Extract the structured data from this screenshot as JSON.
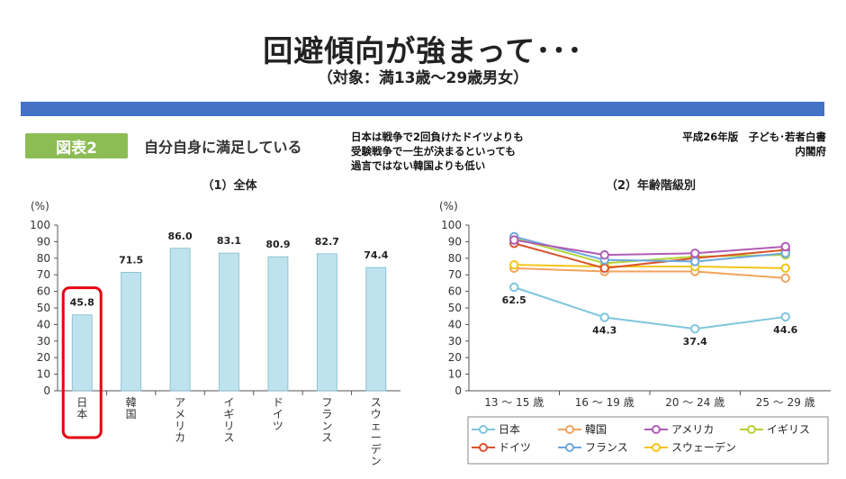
{
  "header": {
    "title": "回避傾向が強まって･･･",
    "subtitle": "（対象：満13歳～29歳男女）"
  },
  "figure": {
    "badge": "図表2",
    "caption": "自分自身に満足している",
    "note_lines": [
      "日本は戦争で2回負けたドイツよりも",
      "受験戦争で一生が決まるといっても",
      "過言ではない韓国よりも低い"
    ],
    "source_lines": [
      "平成26年版　子ども･若者白書",
      "内閣府"
    ]
  },
  "colors": {
    "bar_fill": "#bfe3ee",
    "bar_stroke": "#7fb9cc",
    "highlight": "#e60012",
    "band": "#4472c4",
    "badge": "#8cbd55"
  },
  "chart_data": [
    {
      "type": "bar",
      "subtitle": "（1）全体",
      "ylabel": "(%)",
      "ylim": [
        0,
        100
      ],
      "yticks": [
        0,
        10,
        20,
        30,
        40,
        50,
        60,
        70,
        80,
        90,
        100
      ],
      "categories": [
        "日本",
        "韓国",
        "アメリカ",
        "イギリス",
        "ドイツ",
        "フランス",
        "スウェーデン"
      ],
      "values": [
        45.8,
        71.5,
        86.0,
        83.1,
        80.9,
        82.7,
        74.4
      ],
      "value_labels": [
        "45.8",
        "71.5",
        "86.0",
        "83.1",
        "80.9",
        "82.7",
        "74.4"
      ],
      "highlighted_category": "日本",
      "grid": false
    },
    {
      "type": "line",
      "subtitle": "（2）年齢階級別",
      "ylabel": "(%)",
      "ylim": [
        0,
        100
      ],
      "yticks": [
        0,
        10,
        20,
        30,
        40,
        50,
        60,
        70,
        80,
        90,
        100
      ],
      "categories": [
        "13 ～ 15 歳",
        "16 ～ 19 歳",
        "20 ～ 24 歳",
        "25 ～ 29 歳"
      ],
      "legend_position": "bottom",
      "series": [
        {
          "name": "日本",
          "color": "#7ec5dc",
          "values": [
            62.5,
            44.3,
            37.4,
            44.6
          ],
          "labels": [
            "62.5",
            "44.3",
            "37.4",
            "44.6"
          ]
        },
        {
          "name": "韓国",
          "color": "#f0a35e",
          "values": [
            74,
            72,
            72,
            68
          ]
        },
        {
          "name": "アメリカ",
          "color": "#b05cb6",
          "values": [
            91,
            82,
            83,
            87
          ]
        },
        {
          "name": "イギリス",
          "color": "#b5d334",
          "values": [
            92,
            77,
            81,
            82
          ]
        },
        {
          "name": "ドイツ",
          "color": "#d9532c",
          "values": [
            89,
            74,
            80,
            85
          ]
        },
        {
          "name": "フランス",
          "color": "#6da8de",
          "values": [
            93,
            79,
            78,
            83
          ]
        },
        {
          "name": "スウェーデン",
          "color": "#f2c418",
          "values": [
            76,
            75,
            75,
            74
          ]
        }
      ]
    }
  ]
}
